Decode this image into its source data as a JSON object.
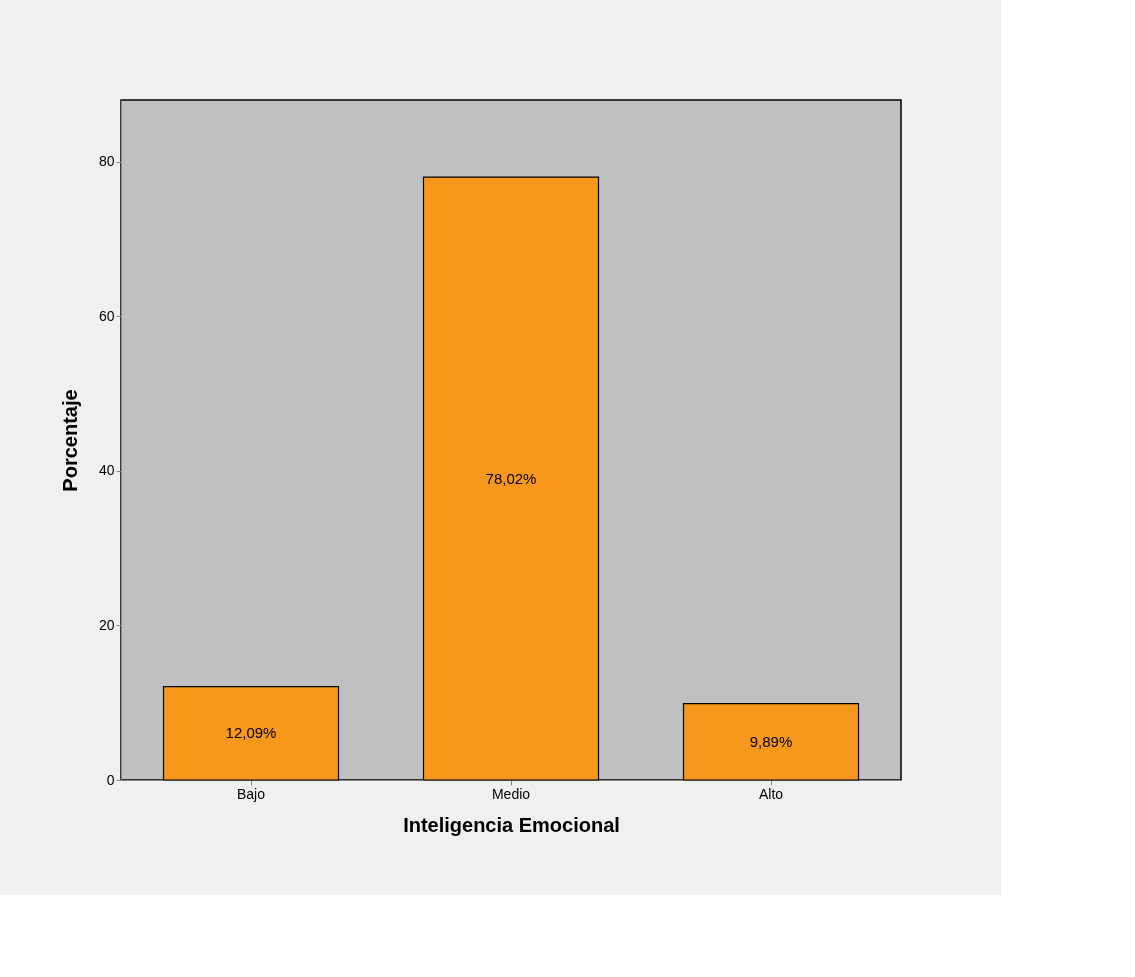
{
  "chart_data": {
    "type": "bar",
    "xlabel": "Inteligencia Emocional",
    "ylabel": "Porcentaje",
    "categories": [
      "Bajo",
      "Medio",
      "Alto"
    ],
    "values": [
      12.09,
      78.02,
      9.89
    ],
    "value_labels": [
      "12,09%",
      "78,02%",
      "9,89%"
    ],
    "color": "#f7981d",
    "ylim": [
      0,
      88
    ],
    "yticks": [
      0,
      20,
      40,
      60,
      80
    ],
    "grid": false
  }
}
